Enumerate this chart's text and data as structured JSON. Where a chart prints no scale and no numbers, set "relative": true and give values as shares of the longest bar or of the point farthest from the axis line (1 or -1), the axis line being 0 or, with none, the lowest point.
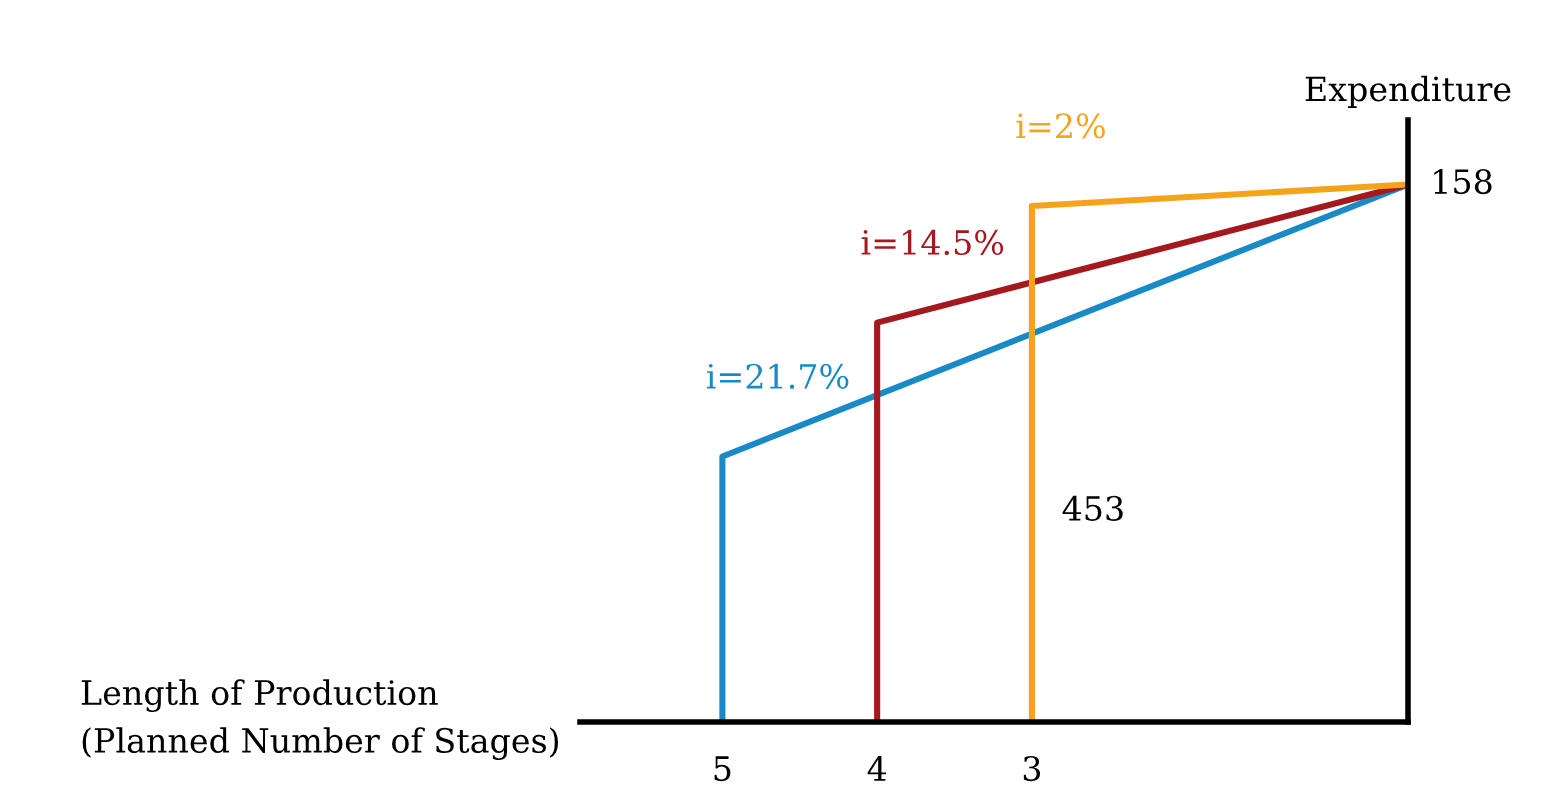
{
  "chart_data": {
    "type": "line",
    "relative": true,
    "xlabel": "Length of Production\n(Planned Number of Stages)",
    "ylabel": "Expenditure",
    "xlim": [
      5.92,
      0.57
    ],
    "xticks": [
      5,
      4,
      3
    ],
    "series": [
      {
        "name": "i=21.7%",
        "color": "#1a8ac6",
        "x": [
          5,
          5,
          0.57
        ],
        "values": [
          0,
          0.494,
          1
        ]
      },
      {
        "name": "i=14.5%",
        "color": "#a3191e",
        "x": [
          4,
          4,
          0.57
        ],
        "values": [
          0,
          0.743,
          1
        ]
      },
      {
        "name": "i=2%",
        "color": "#f5a31a",
        "x": [
          3,
          3,
          0.57
        ],
        "values": [
          0,
          0.96,
          1
        ]
      }
    ],
    "annotations": [
      {
        "text": "158",
        "x": 0.57,
        "y": 1
      },
      "453"
    ],
    "grid": false,
    "legend": false
  }
}
